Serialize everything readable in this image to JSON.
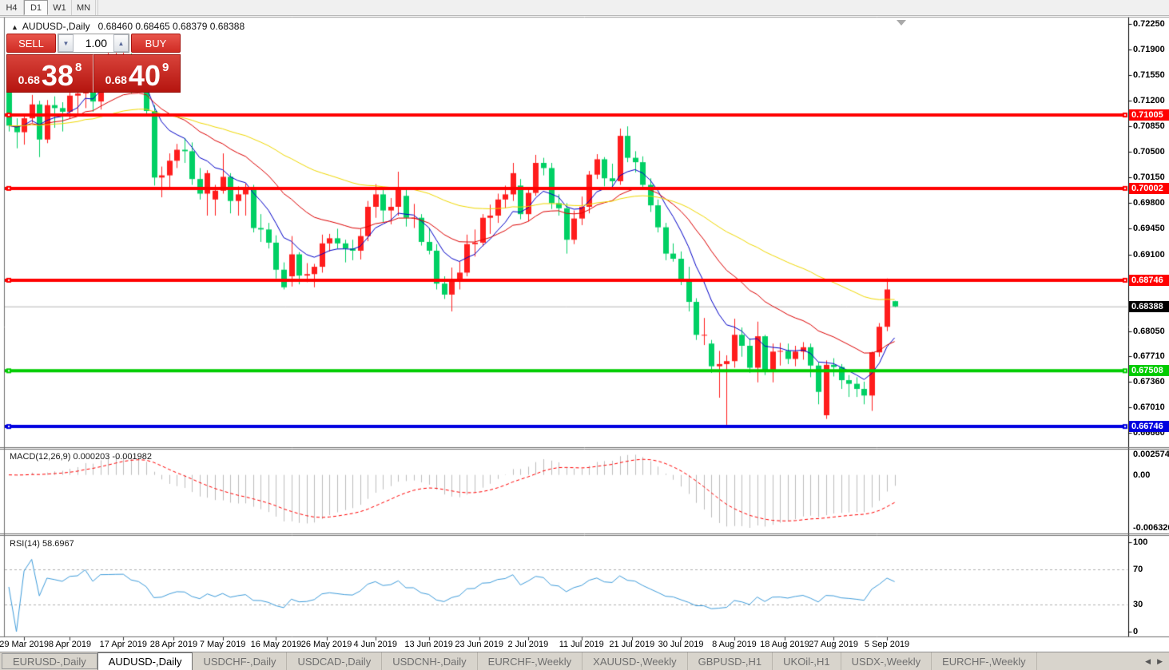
{
  "toolbar": {
    "timeframes": [
      {
        "label": "H4",
        "active": false
      },
      {
        "label": "D1",
        "active": true
      },
      {
        "label": "W1",
        "active": false
      },
      {
        "label": "MN",
        "active": false
      }
    ]
  },
  "chart": {
    "collapse_icon": "▲",
    "title": "AUDUSD-,Daily",
    "ohlc_display": "0.68460 0.68465 0.68379 0.68388",
    "trade_panel": {
      "sell_label": "SELL",
      "buy_label": "BUY",
      "volume": "1.00",
      "spin_down_icon": "▼",
      "spin_up_icon": "▲",
      "sell_price": {
        "frac": "0.68",
        "big": "38",
        "sup": "8"
      },
      "buy_price": {
        "frac": "0.68",
        "big": "40",
        "sup": "9"
      }
    }
  },
  "chart_data": {
    "type": "candlestick",
    "title": "AUDUSD-,Daily",
    "bull_color": "#ff1d1d",
    "bear_color": "#00d064",
    "current_price": 0.68388,
    "current_price_label": "0.68388",
    "price_ticks": [
      {
        "label": "0.72250",
        "value": 0.7225
      },
      {
        "label": "0.71900",
        "value": 0.719
      },
      {
        "label": "0.71550",
        "value": 0.7155
      },
      {
        "label": "0.71200",
        "value": 0.712
      },
      {
        "label": "0.70850",
        "value": 0.7085
      },
      {
        "label": "0.70500",
        "value": 0.705
      },
      {
        "label": "0.70150",
        "value": 0.7015
      },
      {
        "label": "0.69800",
        "value": 0.698
      },
      {
        "label": "0.69450",
        "value": 0.6945
      },
      {
        "label": "0.69100",
        "value": 0.691
      },
      {
        "label": "0.68050",
        "value": 0.6805
      },
      {
        "label": "0.67710",
        "value": 0.6771
      },
      {
        "label": "0.67360",
        "value": 0.6736
      },
      {
        "label": "0.67010",
        "value": 0.6701
      },
      {
        "label": "0.66660",
        "value": 0.6666
      }
    ],
    "h_lines": [
      {
        "label": "0.71005",
        "price": 0.71005,
        "color": "#ff0000"
      },
      {
        "label": "0.70002",
        "price": 0.70002,
        "color": "#ff0000"
      },
      {
        "label": "0.68746",
        "price": 0.68746,
        "color": "#ff0000"
      },
      {
        "label": "0.67508",
        "price": 0.67508,
        "color": "#00cc00"
      },
      {
        "label": "0.66746",
        "price": 0.66746,
        "color": "#0000e0"
      }
    ],
    "moving_averages": [
      {
        "period": 8,
        "color": "#0000c8"
      },
      {
        "period": 21,
        "color": "#dd0000"
      },
      {
        "period": 55,
        "color": "#f0d800"
      }
    ],
    "indicators": [
      {
        "name": "MACD",
        "label": "MACD(12,26,9) 0.000203 -0.001982",
        "params": [
          12,
          26,
          9
        ],
        "axis_ticks": {
          "top": "0.002574",
          "zero": "0.00",
          "bottom": "-0.006326"
        },
        "histogram_color": "#bdbdbd",
        "signal_color": "#ff0000"
      },
      {
        "name": "RSI",
        "label": "RSI(14) 58.6967",
        "period": 14,
        "levels": [
          70,
          30
        ],
        "axis_ticks": [
          {
            "label": "100",
            "value": 100
          },
          {
            "label": "70",
            "value": 70
          },
          {
            "label": "30",
            "value": 30
          },
          {
            "label": "0",
            "value": 0
          }
        ],
        "line_color": "#3e9cdb"
      }
    ],
    "date_labels": [
      {
        "text": "29 Mar 2019",
        "i": 2
      },
      {
        "text": "8 Apr 2019",
        "i": 8
      },
      {
        "text": "17 Apr 2019",
        "i": 15
      },
      {
        "text": "28 Apr 2019",
        "i": 21.6
      },
      {
        "text": "7 May 2019",
        "i": 28
      },
      {
        "text": "16 May 2019",
        "i": 35
      },
      {
        "text": "26 May 2019",
        "i": 41.6
      },
      {
        "text": "4 Jun 2019",
        "i": 48
      },
      {
        "text": "13 Jun 2019",
        "i": 55
      },
      {
        "text": "23 Jun 2019",
        "i": 61.6
      },
      {
        "text": "2 Jul 2019",
        "i": 68
      },
      {
        "text": "11 Jul 2019",
        "i": 75
      },
      {
        "text": "21 Jul 2019",
        "i": 81.6
      },
      {
        "text": "30 Jul 2019",
        "i": 88
      },
      {
        "text": "8 Aug 2019",
        "i": 95
      },
      {
        "text": "18 Aug 2019",
        "i": 101.6
      },
      {
        "text": "27 Aug 2019",
        "i": 108
      },
      {
        "text": "5 Sep 2019",
        "i": 115
      }
    ],
    "candles": [
      [
        "2019.03.27",
        0.7133,
        0.7141,
        0.7078,
        0.7086
      ],
      [
        "2019.03.28",
        0.7086,
        0.7096,
        0.7055,
        0.7077
      ],
      [
        "2019.03.29",
        0.7077,
        0.71,
        0.706,
        0.7096
      ],
      [
        "2019.04.01",
        0.7096,
        0.7128,
        0.709,
        0.7115
      ],
      [
        "2019.04.02",
        0.7115,
        0.712,
        0.7043,
        0.7067
      ],
      [
        "2019.04.03",
        0.7067,
        0.7121,
        0.7062,
        0.7114
      ],
      [
        "2019.04.04",
        0.7114,
        0.7126,
        0.7083,
        0.711
      ],
      [
        "2019.04.05",
        0.711,
        0.7118,
        0.7078,
        0.7105
      ],
      [
        "2019.04.08",
        0.7105,
        0.7133,
        0.7095,
        0.7127
      ],
      [
        "2019.04.09",
        0.7127,
        0.714,
        0.7102,
        0.713
      ],
      [
        "2019.04.10",
        0.713,
        0.7175,
        0.711,
        0.7168
      ],
      [
        "2019.04.11",
        0.7168,
        0.7178,
        0.7105,
        0.7119
      ],
      [
        "2019.04.12",
        0.7119,
        0.7177,
        0.7108,
        0.7173
      ],
      [
        "2019.04.15",
        0.7173,
        0.7188,
        0.7152,
        0.7174
      ],
      [
        "2019.04.16",
        0.7174,
        0.7197,
        0.716,
        0.7176
      ],
      [
        "2019.04.17",
        0.7176,
        0.7207,
        0.7162,
        0.7177
      ],
      [
        "2019.04.18",
        0.7177,
        0.7185,
        0.713,
        0.7147
      ],
      [
        "2019.04.22",
        0.7147,
        0.7166,
        0.7134,
        0.7137
      ],
      [
        "2019.04.23",
        0.7137,
        0.7141,
        0.7101,
        0.7106
      ],
      [
        "2019.04.24",
        0.7106,
        0.7114,
        0.7004,
        0.7015
      ],
      [
        "2019.04.25",
        0.7015,
        0.703,
        0.6988,
        0.7018
      ],
      [
        "2019.04.26",
        0.7018,
        0.7048,
        0.7002,
        0.7038
      ],
      [
        "2019.04.29",
        0.7038,
        0.7061,
        0.7028,
        0.7053
      ],
      [
        "2019.04.30",
        0.7053,
        0.7069,
        0.7035,
        0.7051
      ],
      [
        "2019.05.01",
        0.7051,
        0.7063,
        0.7005,
        0.7013
      ],
      [
        "2019.05.02",
        0.7013,
        0.7028,
        0.6985,
        0.6993
      ],
      [
        "2019.05.03",
        0.6993,
        0.7025,
        0.6963,
        0.7021
      ],
      [
        "2019.05.06",
        0.6985,
        0.7005,
        0.6963,
        0.6997
      ],
      [
        "2019.05.07",
        0.6997,
        0.7048,
        0.6993,
        0.7016
      ],
      [
        "2019.05.08",
        0.7016,
        0.7021,
        0.6966,
        0.6983
      ],
      [
        "2019.05.09",
        0.6983,
        0.7003,
        0.6963,
        0.6992
      ],
      [
        "2019.05.10",
        0.6992,
        0.7007,
        0.6963,
        0.6998
      ],
      [
        "2019.05.13",
        0.6998,
        0.7005,
        0.694,
        0.6946
      ],
      [
        "2019.05.14",
        0.6946,
        0.6965,
        0.6927,
        0.6944
      ],
      [
        "2019.05.15",
        0.6944,
        0.6953,
        0.6918,
        0.6926
      ],
      [
        "2019.05.16",
        0.6926,
        0.6936,
        0.6877,
        0.6889
      ],
      [
        "2019.05.17",
        0.6889,
        0.6899,
        0.6862,
        0.6865
      ],
      [
        "2019.05.20",
        0.688,
        0.6935,
        0.6866,
        0.691
      ],
      [
        "2019.05.21",
        0.691,
        0.6913,
        0.6869,
        0.6881
      ],
      [
        "2019.05.22",
        0.6881,
        0.6898,
        0.6872,
        0.6883
      ],
      [
        "2019.05.23",
        0.6883,
        0.6897,
        0.6865,
        0.6893
      ],
      [
        "2019.05.24",
        0.6893,
        0.6937,
        0.6885,
        0.6925
      ],
      [
        "2019.05.27",
        0.6925,
        0.6938,
        0.6914,
        0.6932
      ],
      [
        "2019.05.28",
        0.6932,
        0.6945,
        0.6918,
        0.6925
      ],
      [
        "2019.05.29",
        0.6925,
        0.693,
        0.6899,
        0.6918
      ],
      [
        "2019.05.30",
        0.6918,
        0.693,
        0.6902,
        0.6915
      ],
      [
        "2019.05.31",
        0.6915,
        0.6945,
        0.6903,
        0.6935
      ],
      [
        "2019.06.03",
        0.6935,
        0.6983,
        0.6928,
        0.6975
      ],
      [
        "2019.06.04",
        0.6975,
        0.7006,
        0.696,
        0.6992
      ],
      [
        "2019.06.05",
        0.6992,
        0.7002,
        0.6954,
        0.697
      ],
      [
        "2019.06.06",
        0.697,
        0.6987,
        0.6951,
        0.6975
      ],
      [
        "2019.06.07",
        0.6975,
        0.7023,
        0.6963,
        0.7
      ],
      [
        "2019.06.10",
        0.699,
        0.7002,
        0.6948,
        0.696
      ],
      [
        "2019.06.11",
        0.696,
        0.6979,
        0.6946,
        0.696
      ],
      [
        "2019.06.12",
        0.696,
        0.6965,
        0.6922,
        0.6927
      ],
      [
        "2019.06.13",
        0.6927,
        0.6945,
        0.691,
        0.6915
      ],
      [
        "2019.06.14",
        0.6915,
        0.6924,
        0.6862,
        0.687
      ],
      [
        "2019.06.17",
        0.687,
        0.688,
        0.6849,
        0.6855
      ],
      [
        "2019.06.18",
        0.6855,
        0.6892,
        0.6832,
        0.6875
      ],
      [
        "2019.06.19",
        0.6875,
        0.69,
        0.6862,
        0.6885
      ],
      [
        "2019.06.20",
        0.6885,
        0.6937,
        0.688,
        0.6924
      ],
      [
        "2019.06.21",
        0.6924,
        0.6944,
        0.6907,
        0.6926
      ],
      [
        "2019.06.24",
        0.6926,
        0.6965,
        0.6921,
        0.696
      ],
      [
        "2019.06.25",
        0.696,
        0.6978,
        0.6938,
        0.6963
      ],
      [
        "2019.06.26",
        0.6963,
        0.6993,
        0.6953,
        0.6985
      ],
      [
        "2019.06.27",
        0.6985,
        0.7004,
        0.6973,
        0.6992
      ],
      [
        "2019.06.28",
        0.6992,
        0.7035,
        0.6983,
        0.7021
      ],
      [
        "2019.07.01",
        0.7004,
        0.7013,
        0.6958,
        0.6965
      ],
      [
        "2019.07.02",
        0.6965,
        0.7,
        0.6955,
        0.6994
      ],
      [
        "2019.07.03",
        0.6994,
        0.7046,
        0.699,
        0.7035
      ],
      [
        "2019.07.04",
        0.7035,
        0.7042,
        0.7018,
        0.7028
      ],
      [
        "2019.07.05",
        0.7028,
        0.7035,
        0.6972,
        0.698
      ],
      [
        "2019.07.08",
        0.698,
        0.6992,
        0.6963,
        0.6973
      ],
      [
        "2019.07.09",
        0.6973,
        0.698,
        0.6911,
        0.693
      ],
      [
        "2019.07.10",
        0.693,
        0.697,
        0.6924,
        0.6959
      ],
      [
        "2019.07.11",
        0.6959,
        0.6989,
        0.695,
        0.6975
      ],
      [
        "2019.07.12",
        0.6975,
        0.7024,
        0.6966,
        0.7019
      ],
      [
        "2019.07.15",
        0.7019,
        0.7047,
        0.7013,
        0.704
      ],
      [
        "2019.07.16",
        0.704,
        0.7043,
        0.7003,
        0.7014
      ],
      [
        "2019.07.17",
        0.7014,
        0.7034,
        0.7,
        0.701
      ],
      [
        "2019.07.18",
        0.701,
        0.7082,
        0.7005,
        0.7072
      ],
      [
        "2019.07.19",
        0.7072,
        0.7085,
        0.7036,
        0.7042
      ],
      [
        "2019.07.22",
        0.7042,
        0.7051,
        0.7022,
        0.7036
      ],
      [
        "2019.07.23",
        0.7036,
        0.7044,
        0.6998,
        0.7005
      ],
      [
        "2019.07.24",
        0.7005,
        0.7014,
        0.6968,
        0.6977
      ],
      [
        "2019.07.25",
        0.6977,
        0.6985,
        0.694,
        0.6947
      ],
      [
        "2019.07.26",
        0.6947,
        0.6953,
        0.6902,
        0.6911
      ],
      [
        "2019.07.29",
        0.6911,
        0.6925,
        0.69,
        0.6904
      ],
      [
        "2019.07.30",
        0.6904,
        0.6914,
        0.6868,
        0.6875
      ],
      [
        "2019.07.31",
        0.6875,
        0.6893,
        0.6832,
        0.6845
      ],
      [
        "2019.08.01",
        0.6845,
        0.685,
        0.6793,
        0.68
      ],
      [
        "2019.08.02",
        0.68,
        0.6823,
        0.6786,
        0.68
      ],
      [
        "2019.08.05",
        0.6788,
        0.6793,
        0.6748,
        0.6757
      ],
      [
        "2019.08.06",
        0.6757,
        0.6778,
        0.6714,
        0.676
      ],
      [
        "2019.08.07",
        0.676,
        0.6772,
        0.6677,
        0.6764
      ],
      [
        "2019.08.08",
        0.6764,
        0.6822,
        0.6755,
        0.68
      ],
      [
        "2019.08.09",
        0.68,
        0.681,
        0.677,
        0.6785
      ],
      [
        "2019.08.12",
        0.6785,
        0.6795,
        0.6748,
        0.6755
      ],
      [
        "2019.08.13",
        0.6755,
        0.6818,
        0.6735,
        0.6798
      ],
      [
        "2019.08.14",
        0.6798,
        0.68,
        0.6745,
        0.6749
      ],
      [
        "2019.08.15",
        0.6749,
        0.6788,
        0.6735,
        0.6777
      ],
      [
        "2019.08.16",
        0.6777,
        0.6789,
        0.6758,
        0.6778
      ],
      [
        "2019.08.19",
        0.6778,
        0.6788,
        0.676,
        0.6767
      ],
      [
        "2019.08.20",
        0.6767,
        0.6785,
        0.6757,
        0.6777
      ],
      [
        "2019.08.21",
        0.6777,
        0.679,
        0.6766,
        0.6783
      ],
      [
        "2019.08.22",
        0.6783,
        0.6788,
        0.6742,
        0.6758
      ],
      [
        "2019.08.23",
        0.6758,
        0.6762,
        0.6705,
        0.6722
      ],
      [
        "2019.08.26",
        0.669,
        0.6765,
        0.6685,
        0.6759
      ],
      [
        "2019.08.27",
        0.6759,
        0.6768,
        0.6743,
        0.6756
      ],
      [
        "2019.08.28",
        0.6756,
        0.676,
        0.6726,
        0.6738
      ],
      [
        "2019.08.29",
        0.6738,
        0.6745,
        0.6715,
        0.6733
      ],
      [
        "2019.08.30",
        0.6733,
        0.6742,
        0.6715,
        0.6726
      ],
      [
        "2019.09.02",
        0.6726,
        0.6736,
        0.6705,
        0.6717
      ],
      [
        "2019.09.03",
        0.6717,
        0.6777,
        0.6696,
        0.6776
      ],
      [
        "2019.09.04",
        0.6776,
        0.6816,
        0.677,
        0.6811
      ],
      [
        "2019.09.05",
        0.6811,
        0.6877,
        0.6805,
        0.6862
      ],
      [
        "2019.09.06",
        0.6846,
        0.68465,
        0.68379,
        0.68388
      ]
    ]
  },
  "tabs": {
    "items": [
      {
        "label": "EURUSD-,Daily",
        "active": false
      },
      {
        "label": "AUDUSD-,Daily",
        "active": true
      },
      {
        "label": "USDCHF-,Daily",
        "active": false
      },
      {
        "label": "USDCAD-,Daily",
        "active": false
      },
      {
        "label": "USDCNH-,Daily",
        "active": false
      },
      {
        "label": "EURCHF-,Weekly",
        "active": false
      },
      {
        "label": "XAUUSD-,Weekly",
        "active": false
      },
      {
        "label": "GBPUSD-,H1",
        "active": false
      },
      {
        "label": "UKOil-,H1",
        "active": false
      },
      {
        "label": "USDX-,Weekly",
        "active": false
      },
      {
        "label": "EURCHF-,Weekly",
        "active": false
      }
    ],
    "scroll_left_icon": "◀",
    "scroll_right_icon": "▶"
  }
}
